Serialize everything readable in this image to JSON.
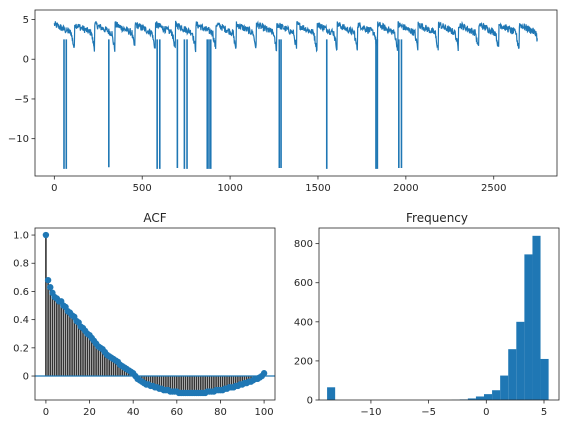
{
  "chart_data": [
    {
      "type": "line",
      "title": "",
      "xlabel": "",
      "ylabel": "",
      "xlim": [
        -110,
        2860
      ],
      "ylim": [
        -14.7,
        6.2
      ],
      "xticks": [
        0,
        500,
        1000,
        1500,
        2000,
        2500
      ],
      "yticks": [
        5,
        0,
        -5,
        -10
      ],
      "n_points": 2750,
      "baseline_range": [
        1.2,
        5.4
      ],
      "cycle_length": 115,
      "dropouts": [
        {
          "x": 55,
          "y": -13.8
        },
        {
          "x": 68,
          "y": -13.8
        },
        {
          "x": 310,
          "y": -13.6
        },
        {
          "x": 585,
          "y": -13.8
        },
        {
          "x": 600,
          "y": -13.8
        },
        {
          "x": 700,
          "y": -13.7
        },
        {
          "x": 740,
          "y": -13.8
        },
        {
          "x": 755,
          "y": -13.8
        },
        {
          "x": 870,
          "y": -13.8
        },
        {
          "x": 880,
          "y": -13.8
        },
        {
          "x": 890,
          "y": -13.8
        },
        {
          "x": 1280,
          "y": -13.7
        },
        {
          "x": 1290,
          "y": -13.7
        },
        {
          "x": 1550,
          "y": -13.8
        },
        {
          "x": 1830,
          "y": -13.8
        },
        {
          "x": 1838,
          "y": -13.8
        },
        {
          "x": 1960,
          "y": -13.7
        },
        {
          "x": 1975,
          "y": -13.7
        }
      ],
      "color": "#1f77b4"
    },
    {
      "type": "stem",
      "title": "ACF",
      "xlabel": "",
      "ylabel": "",
      "xlim": [
        -5,
        105
      ],
      "ylim": [
        -0.17,
        1.05
      ],
      "xticks": [
        0,
        20,
        40,
        60,
        80,
        100
      ],
      "yticks": [
        1.0,
        0.8,
        0.6,
        0.4,
        0.2,
        0.0
      ],
      "lags": [
        0,
        1,
        2,
        3,
        4,
        5,
        6,
        7,
        8,
        9,
        10,
        11,
        12,
        13,
        14,
        15,
        16,
        17,
        18,
        19,
        20,
        21,
        22,
        23,
        24,
        25,
        26,
        27,
        28,
        29,
        30,
        31,
        32,
        33,
        34,
        35,
        36,
        37,
        38,
        39,
        40,
        41,
        42,
        43,
        44,
        45,
        46,
        47,
        48,
        49,
        50,
        51,
        52,
        53,
        54,
        55,
        56,
        57,
        58,
        59,
        60,
        61,
        62,
        63,
        64,
        65,
        66,
        67,
        68,
        69,
        70,
        71,
        72,
        73,
        74,
        75,
        76,
        77,
        78,
        79,
        80,
        81,
        82,
        83,
        84,
        85,
        86,
        87,
        88,
        89,
        90,
        91,
        92,
        93,
        94,
        95,
        96,
        97,
        98,
        99,
        100
      ],
      "values": [
        1.0,
        0.68,
        0.63,
        0.59,
        0.56,
        0.55,
        0.53,
        0.53,
        0.5,
        0.49,
        0.46,
        0.45,
        0.43,
        0.42,
        0.39,
        0.38,
        0.35,
        0.34,
        0.32,
        0.3,
        0.29,
        0.27,
        0.25,
        0.23,
        0.21,
        0.2,
        0.19,
        0.17,
        0.15,
        0.14,
        0.13,
        0.12,
        0.11,
        0.1,
        0.08,
        0.07,
        0.06,
        0.05,
        0.04,
        0.03,
        0.02,
        0.0,
        -0.02,
        -0.03,
        -0.04,
        -0.05,
        -0.06,
        -0.06,
        -0.07,
        -0.07,
        -0.08,
        -0.08,
        -0.09,
        -0.09,
        -0.1,
        -0.1,
        -0.1,
        -0.11,
        -0.11,
        -0.11,
        -0.11,
        -0.12,
        -0.12,
        -0.12,
        -0.12,
        -0.12,
        -0.12,
        -0.12,
        -0.12,
        -0.12,
        -0.12,
        -0.12,
        -0.12,
        -0.12,
        -0.11,
        -0.11,
        -0.11,
        -0.11,
        -0.1,
        -0.1,
        -0.1,
        -0.1,
        -0.09,
        -0.09,
        -0.08,
        -0.08,
        -0.08,
        -0.07,
        -0.07,
        -0.06,
        -0.06,
        -0.05,
        -0.05,
        -0.04,
        -0.04,
        -0.03,
        -0.02,
        -0.02,
        -0.01,
        0.0,
        0.02
      ],
      "color": "#1f77b4",
      "stem_color": "#333333"
    },
    {
      "type": "bar",
      "title": "Frequency",
      "xlabel": "",
      "ylabel": "",
      "xlim": [
        -14.5,
        6.3
      ],
      "ylim": [
        0,
        880
      ],
      "xticks": [
        -10,
        -5,
        0,
        5
      ],
      "yticks": [
        0,
        200,
        400,
        600,
        800
      ],
      "bins": [
        {
          "x0": -13.8,
          "x1": -13.1,
          "count": 65
        },
        {
          "x0": -13.1,
          "x1": -12.4,
          "count": 0
        },
        {
          "x0": -3.0,
          "x1": -2.3,
          "count": 1
        },
        {
          "x0": -2.3,
          "x1": -1.6,
          "count": 3
        },
        {
          "x0": -1.6,
          "x1": -0.9,
          "count": 8
        },
        {
          "x0": -0.9,
          "x1": -0.2,
          "count": 18
        },
        {
          "x0": -0.2,
          "x1": 0.5,
          "count": 30
        },
        {
          "x0": 0.5,
          "x1": 1.2,
          "count": 50
        },
        {
          "x0": 1.2,
          "x1": 1.9,
          "count": 125
        },
        {
          "x0": 1.9,
          "x1": 2.6,
          "count": 260
        },
        {
          "x0": 2.6,
          "x1": 3.3,
          "count": 400
        },
        {
          "x0": 3.3,
          "x1": 4.0,
          "count": 745
        },
        {
          "x0": 4.0,
          "x1": 4.7,
          "count": 840
        },
        {
          "x0": 4.7,
          "x1": 5.4,
          "count": 210
        }
      ],
      "color": "#1f77b4"
    }
  ]
}
